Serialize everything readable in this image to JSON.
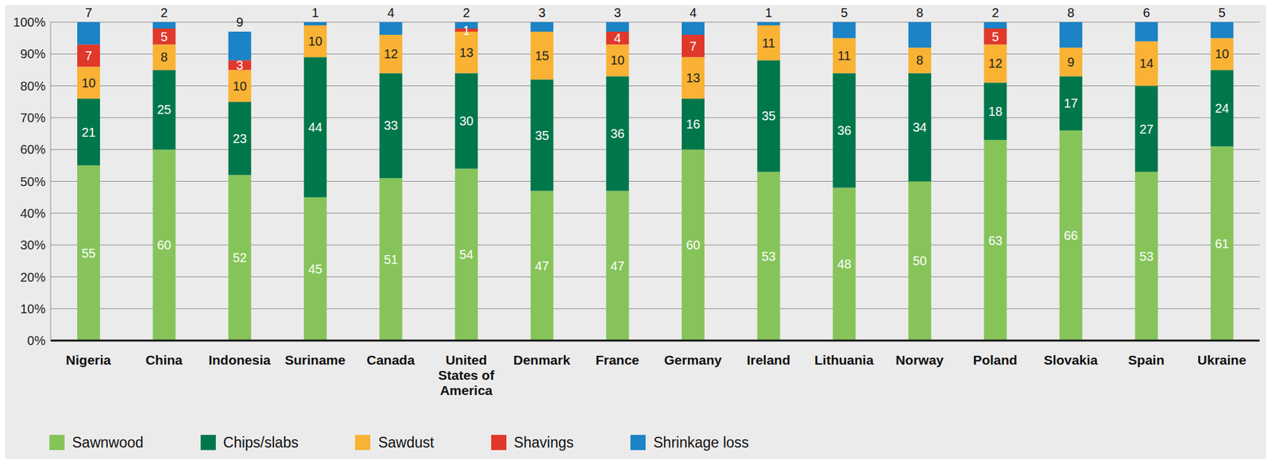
{
  "chart_data": {
    "type": "bar",
    "stacked": true,
    "data_labels": true,
    "grid": true,
    "legend": "bottom",
    "categories": [
      "Nigeria",
      "China",
      "Indonesia",
      "Suriname",
      "Canada",
      "United States of America",
      "Denmark",
      "France",
      "Germany",
      "Ireland",
      "Lithuania",
      "Norway",
      "Poland",
      "Slovakia",
      "Spain",
      "Ukraine"
    ],
    "series": [
      {
        "name": "Sawnwood",
        "color": "#86c45a",
        "values": [
          55,
          60,
          52,
          45,
          51,
          54,
          47,
          47,
          60,
          53,
          48,
          50,
          63,
          66,
          53,
          61
        ]
      },
      {
        "name": "Chips/slabs",
        "color": "#00774b",
        "values": [
          21,
          25,
          23,
          44,
          33,
          30,
          35,
          36,
          16,
          35,
          36,
          34,
          18,
          17,
          27,
          24
        ]
      },
      {
        "name": "Sawdust",
        "color": "#f9b233",
        "values": [
          10,
          8,
          10,
          10,
          12,
          13,
          15,
          10,
          13,
          11,
          11,
          8,
          12,
          9,
          14,
          10
        ]
      },
      {
        "name": "Shavings",
        "color": "#e0382b",
        "values": [
          7,
          5,
          3,
          null,
          null,
          1,
          null,
          4,
          7,
          null,
          null,
          null,
          5,
          null,
          null,
          null
        ]
      },
      {
        "name": "Shrinkage loss",
        "color": "#1b83c6",
        "values": [
          7,
          2,
          9,
          1,
          4,
          2,
          3,
          3,
          4,
          1,
          5,
          8,
          2,
          8,
          6,
          5
        ]
      }
    ],
    "ylim": [
      0,
      100
    ],
    "yticks": [
      {
        "value": 0,
        "label": "0%"
      },
      {
        "value": 10,
        "label": "10%"
      },
      {
        "value": 20,
        "label": "20%"
      },
      {
        "value": 30,
        "label": "30%"
      },
      {
        "value": 40,
        "label": "40%"
      },
      {
        "value": 50,
        "label": "50%"
      },
      {
        "value": 60,
        "label": "60%"
      },
      {
        "value": 70,
        "label": "70%"
      },
      {
        "value": 80,
        "label": "80%"
      },
      {
        "value": 90,
        "label": "90%"
      },
      {
        "value": 100,
        "label": "100%"
      }
    ]
  }
}
